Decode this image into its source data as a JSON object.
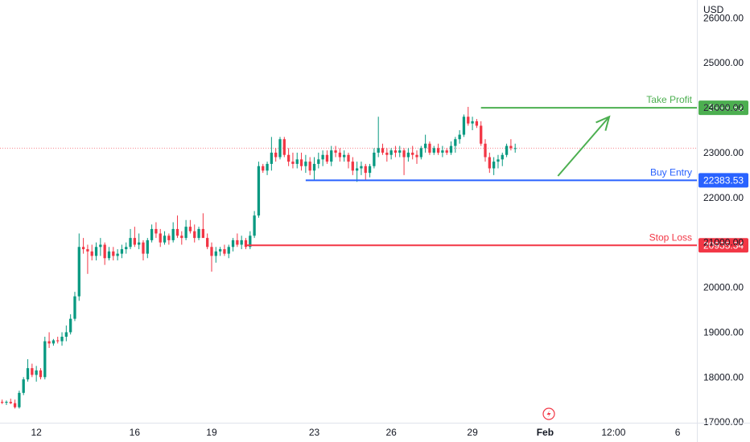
{
  "chart_data": {
    "type": "candlestick",
    "currency": "USD",
    "y_ticks": [
      "26000.00",
      "25000.00",
      "24000.00",
      "23000.00",
      "22000.00",
      "21000.00",
      "20000.00",
      "19000.00",
      "18000.00",
      "17000.00"
    ],
    "y_tick_values": [
      26000,
      25000,
      24000,
      23000,
      22000,
      21000,
      20000,
      19000,
      18000,
      17000
    ],
    "ylim": [
      16985,
      26400
    ],
    "x_ticks": [
      {
        "label": "12",
        "bar": 8,
        "bold": false
      },
      {
        "label": "16",
        "bar": 31,
        "bold": false
      },
      {
        "label": "19",
        "bar": 49,
        "bold": false
      },
      {
        "label": "23",
        "bar": 73,
        "bold": false
      },
      {
        "label": "26",
        "bar": 91,
        "bold": false
      },
      {
        "label": "29",
        "bar": 110,
        "bold": false
      },
      {
        "label": "Feb",
        "bar": 127,
        "bold": true
      },
      {
        "label": "12:00",
        "bar": 143,
        "bold": false
      },
      {
        "label": "6",
        "bar": 158,
        "bold": false
      }
    ],
    "bars_visible": 163,
    "current_price": 23100,
    "levels": [
      {
        "name": "Take Profit",
        "label": "Take Profit",
        "value_text": "23999.82",
        "value": 23999.82,
        "color": "#4caf50",
        "start_bar": 112
      },
      {
        "name": "Buy Entry",
        "label": "Buy Entry",
        "value_text": "22383.53",
        "value": 22383.53,
        "color": "#2962ff",
        "start_bar": 71
      },
      {
        "name": "Stop Loss",
        "label": "Stop Loss",
        "value_text": "20935.34",
        "value": 20935.34,
        "color": "#f23645",
        "start_bar": 57
      }
    ],
    "arrow": {
      "from_bar": 130,
      "from_value": 22480,
      "to_bar": 142,
      "to_value": 23800,
      "color": "#4caf50"
    },
    "candles": [
      [
        17450,
        17500,
        17400,
        17430
      ],
      [
        17430,
        17480,
        17380,
        17450
      ],
      [
        17450,
        17520,
        17400,
        17420
      ],
      [
        17420,
        17500,
        17300,
        17330
      ],
      [
        17330,
        17700,
        17300,
        17650
      ],
      [
        17650,
        18000,
        17600,
        17950
      ],
      [
        17950,
        18400,
        17900,
        18200
      ],
      [
        18200,
        18300,
        18000,
        18050
      ],
      [
        18050,
        18250,
        17900,
        18150
      ],
      [
        18150,
        18200,
        17950,
        18000
      ],
      [
        18000,
        18900,
        17950,
        18800
      ],
      [
        18800,
        19000,
        18650,
        18750
      ],
      [
        18750,
        18850,
        18700,
        18820
      ],
      [
        18820,
        18900,
        18750,
        18800
      ],
      [
        18800,
        19000,
        18700,
        18900
      ],
      [
        18900,
        19150,
        18800,
        19000
      ],
      [
        19000,
        19400,
        18950,
        19300
      ],
      [
        19300,
        19900,
        19250,
        19800
      ],
      [
        19800,
        21200,
        19700,
        20900
      ],
      [
        20900,
        21100,
        20750,
        20850
      ],
      [
        20850,
        20950,
        20300,
        20800
      ],
      [
        20800,
        20950,
        20600,
        20700
      ],
      [
        20700,
        21000,
        20600,
        20900
      ],
      [
        20900,
        21100,
        20700,
        20950
      ],
      [
        20950,
        21000,
        20500,
        20650
      ],
      [
        20650,
        20900,
        20600,
        20800
      ],
      [
        20800,
        20900,
        20600,
        20700
      ],
      [
        20700,
        20850,
        20600,
        20750
      ],
      [
        20750,
        20950,
        20650,
        20850
      ],
      [
        20850,
        21000,
        20750,
        20900
      ],
      [
        20900,
        21300,
        20850,
        21100
      ],
      [
        21100,
        21350,
        20900,
        20950
      ],
      [
        20950,
        21200,
        20850,
        21000
      ],
      [
        21000,
        21050,
        20600,
        20750
      ],
      [
        20750,
        21100,
        20650,
        21050
      ],
      [
        21050,
        21400,
        21000,
        21300
      ],
      [
        21300,
        21450,
        21100,
        21200
      ],
      [
        21200,
        21300,
        20900,
        21000
      ],
      [
        21000,
        21250,
        20950,
        21150
      ],
      [
        21150,
        21200,
        20950,
        21050
      ],
      [
        21050,
        21450,
        21000,
        21300
      ],
      [
        21300,
        21600,
        21100,
        21150
      ],
      [
        21150,
        21250,
        20950,
        21100
      ],
      [
        21100,
        21500,
        21050,
        21350
      ],
      [
        21350,
        21500,
        21200,
        21250
      ],
      [
        21250,
        21400,
        21000,
        21100
      ],
      [
        21100,
        21350,
        21050,
        21300
      ],
      [
        21300,
        21650,
        21150,
        21100
      ],
      [
        21100,
        21200,
        20850,
        20900
      ],
      [
        20900,
        21000,
        20350,
        20700
      ],
      [
        20700,
        20900,
        20550,
        20800
      ],
      [
        20800,
        20900,
        20700,
        20850
      ],
      [
        20850,
        20950,
        20700,
        20750
      ],
      [
        20750,
        20950,
        20650,
        20900
      ],
      [
        20900,
        21100,
        20800,
        21050
      ],
      [
        21050,
        21200,
        20900,
        20950
      ],
      [
        20950,
        21150,
        20850,
        21050
      ],
      [
        21050,
        21100,
        20850,
        20900
      ],
      [
        20900,
        21250,
        20850,
        21150
      ],
      [
        21150,
        21700,
        21100,
        21600
      ],
      [
        21600,
        22800,
        21550,
        22700
      ],
      [
        22700,
        22750,
        22550,
        22600
      ],
      [
        22600,
        22800,
        22500,
        22750
      ],
      [
        22750,
        23350,
        22600,
        23000
      ],
      [
        23000,
        23100,
        22800,
        22900
      ],
      [
        22900,
        23350,
        22850,
        23300
      ],
      [
        23300,
        23350,
        22900,
        22950
      ],
      [
        22950,
        23100,
        22700,
        22800
      ],
      [
        22800,
        23000,
        22650,
        22750
      ],
      [
        22750,
        23000,
        22650,
        22850
      ],
      [
        22850,
        23000,
        22600,
        22700
      ],
      [
        22700,
        22950,
        22550,
        22800
      ],
      [
        22800,
        22900,
        22500,
        22600
      ],
      [
        22600,
        22900,
        22400,
        22750
      ],
      [
        22750,
        23000,
        22650,
        22850
      ],
      [
        22850,
        23050,
        22700,
        22950
      ],
      [
        22950,
        23050,
        22750,
        22800
      ],
      [
        22800,
        23150,
        22700,
        23050
      ],
      [
        23050,
        23150,
        22900,
        23000
      ],
      [
        23000,
        23100,
        22800,
        22900
      ],
      [
        22900,
        23050,
        22800,
        22950
      ],
      [
        22950,
        23000,
        22650,
        22800
      ],
      [
        22800,
        22900,
        22500,
        22600
      ],
      [
        22600,
        22800,
        22350,
        22650
      ],
      [
        22650,
        22800,
        22500,
        22700
      ],
      [
        22700,
        22750,
        22400,
        22550
      ],
      [
        22550,
        22750,
        22450,
        22700
      ],
      [
        22700,
        23100,
        22650,
        23000
      ],
      [
        23000,
        23800,
        22900,
        23100
      ],
      [
        23100,
        23200,
        22950,
        23000
      ],
      [
        23000,
        23100,
        22800,
        22950
      ],
      [
        22950,
        23100,
        22850,
        23050
      ],
      [
        23050,
        23150,
        22900,
        23000
      ],
      [
        23000,
        23150,
        22900,
        23050
      ],
      [
        23050,
        23100,
        22500,
        22900
      ],
      [
        22900,
        23100,
        22800,
        23000
      ],
      [
        23000,
        23150,
        22850,
        22950
      ],
      [
        22950,
        23050,
        22750,
        22900
      ],
      [
        22900,
        23150,
        22850,
        23100
      ],
      [
        23100,
        23400,
        23000,
        23200
      ],
      [
        23200,
        23250,
        22950,
        23000
      ],
      [
        23000,
        23150,
        22950,
        23100
      ],
      [
        23100,
        23200,
        22950,
        23000
      ],
      [
        23000,
        23150,
        22900,
        23050
      ],
      [
        23050,
        23100,
        22950,
        23000
      ],
      [
        23000,
        23250,
        22950,
        23150
      ],
      [
        23150,
        23350,
        23000,
        23300
      ],
      [
        23300,
        23500,
        23200,
        23400
      ],
      [
        23400,
        23850,
        23350,
        23800
      ],
      [
        23800,
        24020,
        23600,
        23650
      ],
      [
        23650,
        23800,
        23500,
        23700
      ],
      [
        23700,
        23750,
        23550,
        23600
      ],
      [
        23600,
        23700,
        23150,
        23200
      ],
      [
        23200,
        23300,
        22800,
        22900
      ],
      [
        22900,
        23000,
        22550,
        22650
      ],
      [
        22650,
        22900,
        22500,
        22800
      ],
      [
        22800,
        22950,
        22650,
        22850
      ],
      [
        22850,
        23000,
        22700,
        22950
      ],
      [
        22950,
        23200,
        22900,
        23150
      ],
      [
        23150,
        23300,
        23050,
        23100
      ],
      [
        23100,
        23200,
        23000,
        23100
      ]
    ]
  }
}
